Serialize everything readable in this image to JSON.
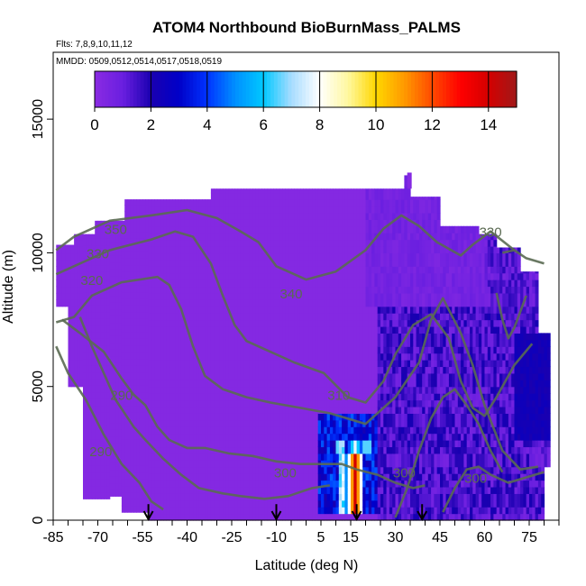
{
  "chart_data": {
    "type": "heatmap",
    "title": "ATOM4 Northbound BioBurnMass_PALMS",
    "subtitle_flights": "Flts: 7,8,9,10,11,12",
    "subtitle_dates": "MMDD: 0509,0512,0514,0517,0518,0519",
    "xlabel": "Latitude (deg N)",
    "ylabel": "Altitude (m)",
    "xlim": [
      -85,
      85
    ],
    "ylim": [
      0,
      17500
    ],
    "x_ticks": [
      -85,
      -70,
      -55,
      -40,
      -25,
      -10,
      5,
      15,
      30,
      45,
      60,
      75
    ],
    "x_tick_labels": [
      "-85",
      "-70",
      "-55",
      "-40",
      "-25",
      "-10",
      "5",
      "15",
      "30",
      "45",
      "60",
      "75"
    ],
    "y_ticks": [
      0,
      5000,
      10000,
      15000
    ],
    "y_tick_labels": [
      "0",
      "5000",
      "10000",
      "15000"
    ],
    "colorbar": {
      "range": [
        0,
        15
      ],
      "ticks": [
        0,
        2,
        4,
        6,
        8,
        10,
        12,
        14
      ],
      "tick_labels": [
        "0",
        "2",
        "4",
        "6",
        "8",
        "10",
        "12",
        "14"
      ],
      "colors": [
        "#8a2be2",
        "#6a1fe0",
        "#1a00b0",
        "#0000c8",
        "#0033ff",
        "#0090ff",
        "#00c8ff",
        "#a8dcff",
        "#ffffff",
        "#fff8a0",
        "#ffd700",
        "#ff9a00",
        "#ff4a00",
        "#ff0000",
        "#d40000",
        "#a01818"
      ]
    },
    "hotspot": {
      "lat_range": [
        11,
        19
      ],
      "alt_range": [
        300,
        3000
      ],
      "max_value": 14
    },
    "theta_contour_labels": [
      "350",
      "330",
      "320",
      "340",
      "310",
      "300",
      "300",
      "300",
      "290",
      "290",
      "330"
    ],
    "flight_arrows_lat": [
      -53,
      -10,
      17,
      39
    ]
  }
}
